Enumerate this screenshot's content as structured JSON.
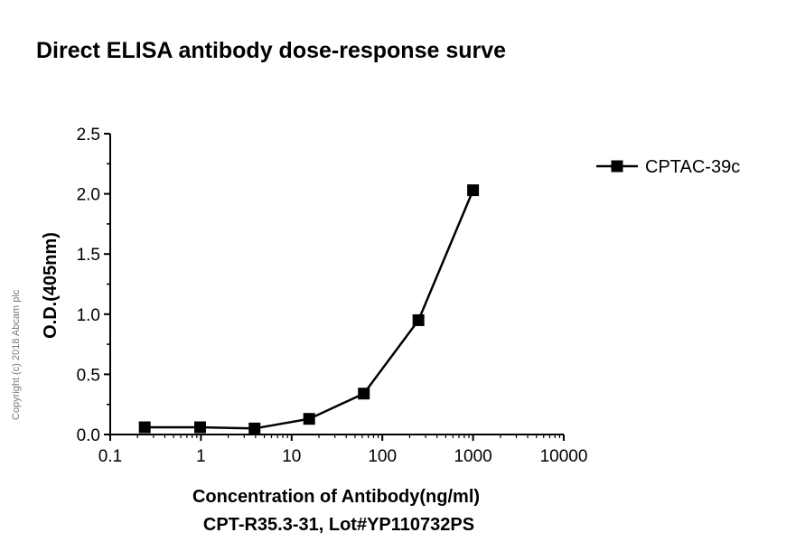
{
  "chart_data": {
    "type": "line",
    "title": "Direct ELISA antibody dose-response surve",
    "xlabel": "Concentration of Antibody(ng/ml)",
    "xlabel2": "CPT-R35.3-31,  Lot#YP110732PS",
    "ylabel": "O.D.(405nm)",
    "xscale": "log",
    "xlim": [
      0.1,
      10000
    ],
    "ylim": [
      0,
      2.5
    ],
    "x_ticks": [
      "0.1",
      "1",
      "10",
      "100",
      "1000",
      "10000"
    ],
    "y_ticks": [
      "0.0",
      "0.5",
      "1.0",
      "1.5",
      "2.0",
      "2.5"
    ],
    "legend_position": "top-right",
    "series": [
      {
        "name": "CPTAC-39c",
        "marker": "square",
        "color": "#000000",
        "x": [
          0.24,
          0.98,
          3.9,
          15.6,
          62.5,
          250,
          1000
        ],
        "y": [
          0.06,
          0.06,
          0.05,
          0.13,
          0.34,
          0.95,
          2.03
        ]
      }
    ]
  },
  "watermark": "Copyright (c) 2018 Abcam plc"
}
